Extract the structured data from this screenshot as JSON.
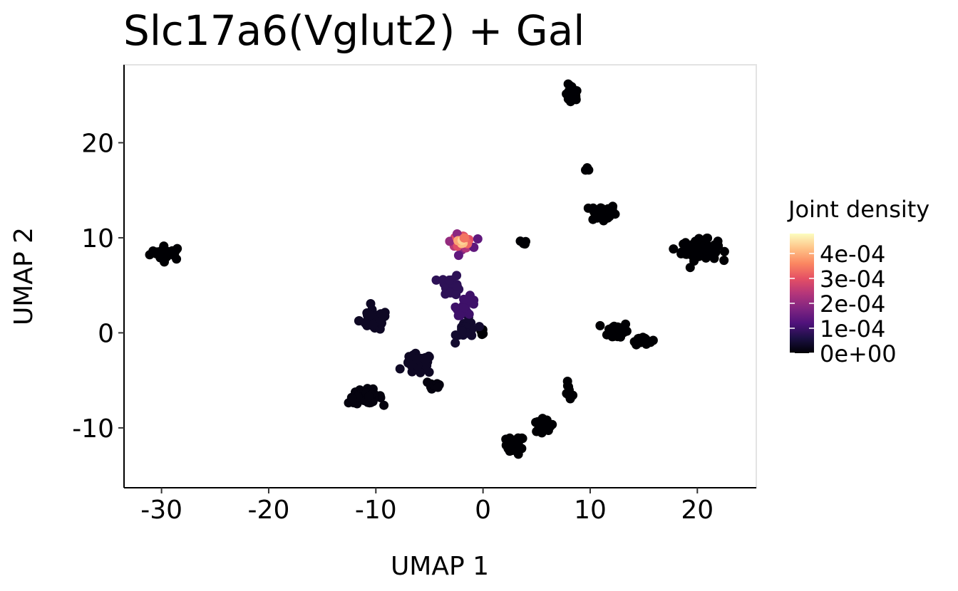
{
  "chart_data": {
    "type": "scatter",
    "title": "Slc17a6(Vglut2) + Gal",
    "xlabel": "UMAP 1",
    "ylabel": "UMAP 2",
    "xlim": [
      -33.5,
      25.5
    ],
    "ylim": [
      -16.3,
      28.2
    ],
    "xticks": [
      -30,
      -20,
      -10,
      0,
      10,
      20
    ],
    "xtick_labels": [
      "-30",
      "-20",
      "-10",
      "0",
      "10",
      "20"
    ],
    "yticks": [
      -10,
      0,
      10,
      20
    ],
    "ytick_labels": [
      "-10",
      "0",
      "10",
      "20"
    ],
    "grid": false,
    "legend_position": "right",
    "color_scale": {
      "name": "Joint density",
      "palette": "magma",
      "min": 0,
      "max": 0.00048,
      "ticks": [
        0,
        0.0001,
        0.0002,
        0.0003,
        0.0004
      ],
      "tick_labels": [
        "0e+00",
        "1e-04",
        "2e-04",
        "3e-04",
        "4e-04"
      ],
      "colors": [
        "#000004",
        "#1c1044",
        "#4f127b",
        "#812581",
        "#b5367a",
        "#e55064",
        "#fb8761",
        "#fec287",
        "#fcfdbf"
      ]
    },
    "clusters": [
      {
        "x": -29.5,
        "y": 8.4,
        "sx": 1.3,
        "sy": 0.6,
        "n": 28,
        "density": 0.0
      },
      {
        "x": -10.2,
        "y": 1.3,
        "sx": 1.1,
        "sy": 0.9,
        "n": 40,
        "density": 3e-05
      },
      {
        "x": -11.0,
        "y": -6.7,
        "sx": 1.3,
        "sy": 0.6,
        "n": 55,
        "density": 1e-05
      },
      {
        "x": -6.0,
        "y": -3.3,
        "sx": 1.1,
        "sy": 0.9,
        "n": 40,
        "density": 3e-05
      },
      {
        "x": -4.6,
        "y": -5.5,
        "sx": 0.7,
        "sy": 0.6,
        "n": 14,
        "density": 1e-05
      },
      {
        "x": -3.0,
        "y": 5.0,
        "sx": 0.8,
        "sy": 0.9,
        "n": 22,
        "density": 8e-05
      },
      {
        "x": -1.5,
        "y": 2.8,
        "sx": 0.8,
        "sy": 0.8,
        "n": 22,
        "density": 0.0001
      },
      {
        "x": -1.5,
        "y": 0.3,
        "sx": 0.8,
        "sy": 0.9,
        "n": 25,
        "density": 4e-05
      },
      {
        "x": -2.0,
        "y": 9.6,
        "sx": 0.8,
        "sy": 0.6,
        "n": 38,
        "density": 0.0004
      },
      {
        "x": 3.0,
        "y": -11.8,
        "sx": 0.7,
        "sy": 0.8,
        "n": 30,
        "density": 0.0
      },
      {
        "x": 5.5,
        "y": -9.8,
        "sx": 0.9,
        "sy": 0.8,
        "n": 14,
        "density": 0.0
      },
      {
        "x": 8.0,
        "y": -6.3,
        "sx": 0.3,
        "sy": 0.8,
        "n": 8,
        "density": 0.0
      },
      {
        "x": 8.3,
        "y": 25.0,
        "sx": 0.5,
        "sy": 0.9,
        "n": 25,
        "density": 0.0
      },
      {
        "x": 9.8,
        "y": 17.3,
        "sx": 0.2,
        "sy": 0.2,
        "n": 4,
        "density": 0.0
      },
      {
        "x": 11.2,
        "y": 12.6,
        "sx": 1.0,
        "sy": 0.8,
        "n": 38,
        "density": 0.0
      },
      {
        "x": 12.6,
        "y": 0.2,
        "sx": 0.8,
        "sy": 0.8,
        "n": 30,
        "density": 0.0
      },
      {
        "x": 14.8,
        "y": -0.7,
        "sx": 0.8,
        "sy": 0.4,
        "n": 14,
        "density": 0.0
      },
      {
        "x": 20.2,
        "y": 8.7,
        "sx": 1.4,
        "sy": 0.9,
        "n": 85,
        "density": 0.0
      },
      {
        "x": 3.9,
        "y": 9.5,
        "sx": 0.4,
        "sy": 0.2,
        "n": 5,
        "density": 0.0
      },
      {
        "x": 0.0,
        "y": 0.3,
        "sx": 0.4,
        "sy": 0.3,
        "n": 5,
        "density": 0.0
      }
    ]
  }
}
